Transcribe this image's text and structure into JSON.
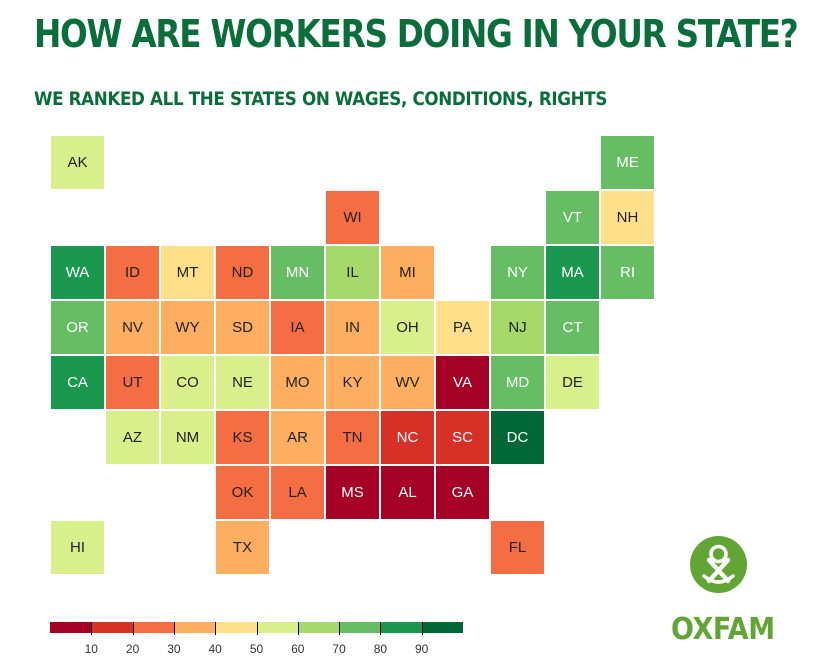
{
  "title": "HOW ARE WORKERS DOING IN YOUR STATE?",
  "subtitle": "WE RANKED ALL THE STATES ON WAGES, CONDITIONS, RIGHTS",
  "logo_text": "OXFAM",
  "colors": {
    "heading": "#0a6e3a",
    "logo": "#61a534",
    "scale": [
      "#a50026",
      "#d73027",
      "#f46d43",
      "#fdae61",
      "#fee08b",
      "#d9ef8b",
      "#a6d96a",
      "#66bd63",
      "#1a9850",
      "#006837"
    ]
  },
  "chart_data": {
    "type": "heatmap",
    "layout": "us-state tile grid",
    "color_scale": {
      "min": 0,
      "max": 100,
      "ticks": [
        10,
        20,
        30,
        40,
        50,
        60,
        70,
        80,
        90
      ]
    },
    "states": [
      {
        "abbr": "AK",
        "row": 0,
        "col": 0,
        "value": 55
      },
      {
        "abbr": "ME",
        "row": 0,
        "col": 10,
        "value": 75
      },
      {
        "abbr": "WI",
        "row": 1,
        "col": 5,
        "value": 25
      },
      {
        "abbr": "VT",
        "row": 1,
        "col": 9,
        "value": 75
      },
      {
        "abbr": "NH",
        "row": 1,
        "col": 10,
        "value": 45
      },
      {
        "abbr": "WA",
        "row": 2,
        "col": 0,
        "value": 85
      },
      {
        "abbr": "ID",
        "row": 2,
        "col": 1,
        "value": 25
      },
      {
        "abbr": "MT",
        "row": 2,
        "col": 2,
        "value": 45
      },
      {
        "abbr": "ND",
        "row": 2,
        "col": 3,
        "value": 25
      },
      {
        "abbr": "MN",
        "row": 2,
        "col": 4,
        "value": 75
      },
      {
        "abbr": "IL",
        "row": 2,
        "col": 5,
        "value": 65
      },
      {
        "abbr": "MI",
        "row": 2,
        "col": 6,
        "value": 35
      },
      {
        "abbr": "NY",
        "row": 2,
        "col": 8,
        "value": 75
      },
      {
        "abbr": "MA",
        "row": 2,
        "col": 9,
        "value": 85
      },
      {
        "abbr": "RI",
        "row": 2,
        "col": 10,
        "value": 75
      },
      {
        "abbr": "OR",
        "row": 3,
        "col": 0,
        "value": 75
      },
      {
        "abbr": "NV",
        "row": 3,
        "col": 1,
        "value": 35
      },
      {
        "abbr": "WY",
        "row": 3,
        "col": 2,
        "value": 35
      },
      {
        "abbr": "SD",
        "row": 3,
        "col": 3,
        "value": 35
      },
      {
        "abbr": "IA",
        "row": 3,
        "col": 4,
        "value": 25
      },
      {
        "abbr": "IN",
        "row": 3,
        "col": 5,
        "value": 35
      },
      {
        "abbr": "OH",
        "row": 3,
        "col": 6,
        "value": 55
      },
      {
        "abbr": "PA",
        "row": 3,
        "col": 7,
        "value": 45
      },
      {
        "abbr": "NJ",
        "row": 3,
        "col": 8,
        "value": 65
      },
      {
        "abbr": "CT",
        "row": 3,
        "col": 9,
        "value": 75
      },
      {
        "abbr": "CA",
        "row": 4,
        "col": 0,
        "value": 85
      },
      {
        "abbr": "UT",
        "row": 4,
        "col": 1,
        "value": 25
      },
      {
        "abbr": "CO",
        "row": 4,
        "col": 2,
        "value": 55
      },
      {
        "abbr": "NE",
        "row": 4,
        "col": 3,
        "value": 55
      },
      {
        "abbr": "MO",
        "row": 4,
        "col": 4,
        "value": 35
      },
      {
        "abbr": "KY",
        "row": 4,
        "col": 5,
        "value": 35
      },
      {
        "abbr": "WV",
        "row": 4,
        "col": 6,
        "value": 35
      },
      {
        "abbr": "VA",
        "row": 4,
        "col": 7,
        "value": 5
      },
      {
        "abbr": "MD",
        "row": 4,
        "col": 8,
        "value": 75
      },
      {
        "abbr": "DE",
        "row": 4,
        "col": 9,
        "value": 55
      },
      {
        "abbr": "AZ",
        "row": 5,
        "col": 1,
        "value": 55
      },
      {
        "abbr": "NM",
        "row": 5,
        "col": 2,
        "value": 55
      },
      {
        "abbr": "KS",
        "row": 5,
        "col": 3,
        "value": 25
      },
      {
        "abbr": "AR",
        "row": 5,
        "col": 4,
        "value": 35
      },
      {
        "abbr": "TN",
        "row": 5,
        "col": 5,
        "value": 25
      },
      {
        "abbr": "NC",
        "row": 5,
        "col": 6,
        "value": 15
      },
      {
        "abbr": "SC",
        "row": 5,
        "col": 7,
        "value": 15
      },
      {
        "abbr": "DC",
        "row": 5,
        "col": 8,
        "value": 95
      },
      {
        "abbr": "OK",
        "row": 6,
        "col": 3,
        "value": 25
      },
      {
        "abbr": "LA",
        "row": 6,
        "col": 4,
        "value": 25
      },
      {
        "abbr": "MS",
        "row": 6,
        "col": 5,
        "value": 5
      },
      {
        "abbr": "AL",
        "row": 6,
        "col": 6,
        "value": 5
      },
      {
        "abbr": "GA",
        "row": 6,
        "col": 7,
        "value": 5
      },
      {
        "abbr": "HI",
        "row": 7,
        "col": 0,
        "value": 55
      },
      {
        "abbr": "TX",
        "row": 7,
        "col": 3,
        "value": 35
      },
      {
        "abbr": "FL",
        "row": 7,
        "col": 8,
        "value": 25
      }
    ]
  }
}
